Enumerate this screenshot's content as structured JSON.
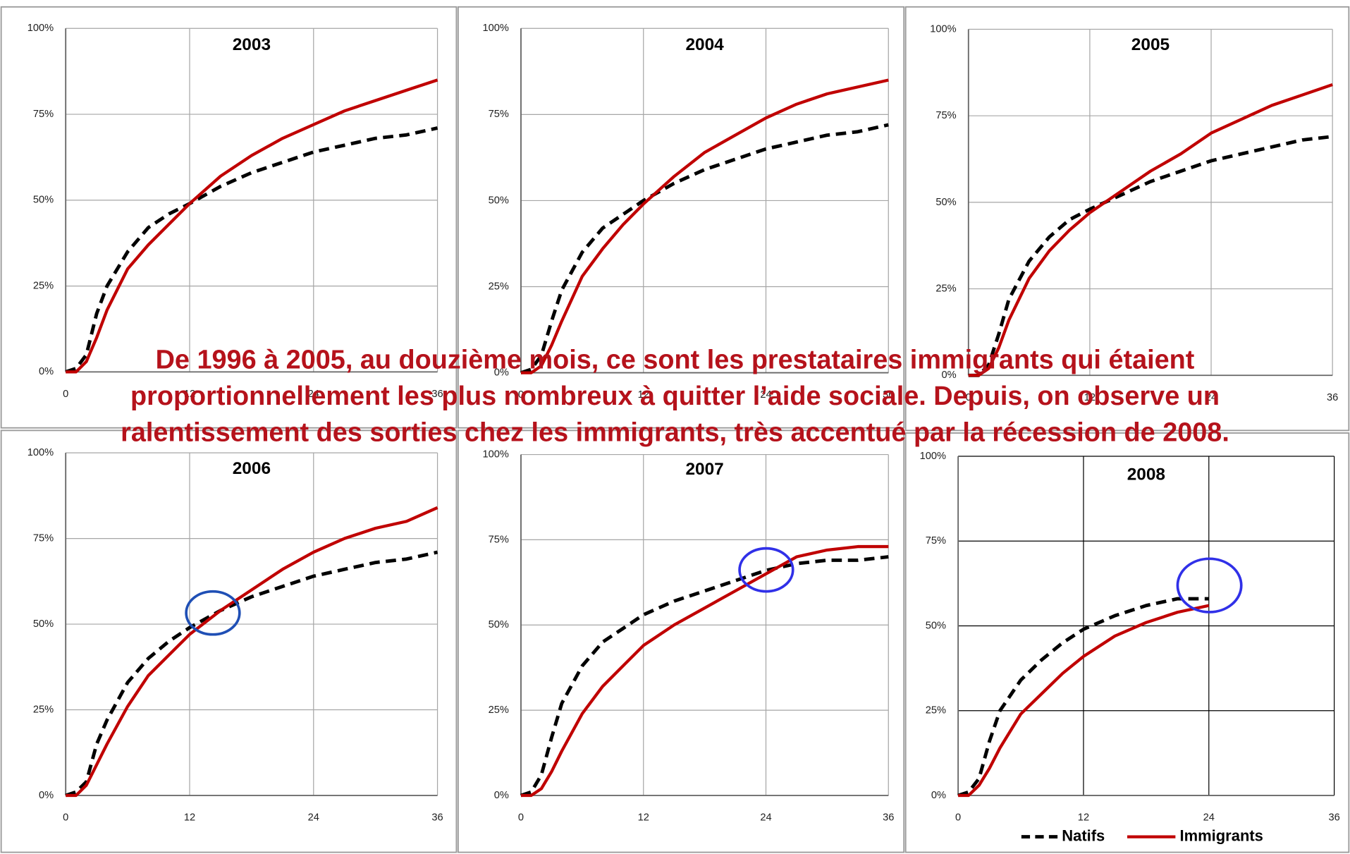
{
  "chart_data": [
    {
      "type": "line",
      "title": "2003",
      "x": [
        0,
        1,
        2,
        3,
        4,
        6,
        8,
        10,
        12,
        15,
        18,
        21,
        24,
        27,
        30,
        33,
        36
      ],
      "series": [
        {
          "color": "#000000",
          "dash": true,
          "values": [
            0,
            1,
            5,
            17,
            25,
            35,
            42,
            46,
            49,
            54,
            58,
            61,
            64,
            66,
            68,
            69,
            71
          ]
        },
        {
          "color": "#c00000",
          "values": [
            0,
            0,
            3,
            10,
            18,
            30,
            37,
            43,
            49,
            57,
            63,
            68,
            72,
            76,
            79,
            82,
            85
          ]
        }
      ],
      "xlim": [
        0,
        36
      ],
      "xticks": [
        0,
        12,
        24,
        36
      ],
      "ylim": [
        0,
        100
      ],
      "yticks": [
        {
          "value": 0,
          "label": "0%"
        },
        {
          "value": 25,
          "label": "25%"
        },
        {
          "value": 50,
          "label": "50%"
        },
        {
          "value": 75,
          "label": "75%"
        },
        {
          "value": 100,
          "label": "100%"
        }
      ],
      "grid": true,
      "grid_color": "#a6a6a6"
    },
    {
      "type": "line",
      "title": "2004",
      "x": [
        0,
        1,
        2,
        3,
        4,
        6,
        8,
        10,
        12,
        15,
        18,
        21,
        24,
        27,
        30,
        33,
        36
      ],
      "series": [
        {
          "color": "#000000",
          "dash": true,
          "values": [
            0,
            1,
            5,
            15,
            24,
            35,
            42,
            46,
            50,
            55,
            59,
            62,
            65,
            67,
            69,
            70,
            72
          ]
        },
        {
          "color": "#c00000",
          "values": [
            0,
            0,
            2,
            8,
            15,
            28,
            36,
            43,
            49,
            57,
            64,
            69,
            74,
            78,
            81,
            83,
            85
          ]
        }
      ],
      "xlim": [
        0,
        36
      ],
      "xticks": [
        0,
        12,
        24,
        36
      ],
      "ylim": [
        0,
        100
      ],
      "yticks": [
        {
          "value": 0,
          "label": "0%"
        },
        {
          "value": 25,
          "label": "25%"
        },
        {
          "value": 50,
          "label": "50%"
        },
        {
          "value": 75,
          "label": "75%"
        },
        {
          "value": 100,
          "label": "100%"
        }
      ],
      "grid": true,
      "grid_color": "#a6a6a6"
    },
    {
      "type": "line",
      "title": "2005",
      "x": [
        0,
        1,
        2,
        3,
        4,
        6,
        8,
        10,
        12,
        15,
        18,
        21,
        24,
        27,
        30,
        33,
        36
      ],
      "series": [
        {
          "color": "#000000",
          "dash": true,
          "values": [
            0,
            0,
            3,
            12,
            22,
            33,
            40,
            45,
            48,
            52,
            56,
            59,
            62,
            64,
            66,
            68,
            69
          ]
        },
        {
          "color": "#c00000",
          "values": [
            0,
            0,
            2,
            8,
            16,
            28,
            36,
            42,
            47,
            53,
            59,
            64,
            70,
            74,
            78,
            81,
            84
          ]
        }
      ],
      "xlim": [
        0,
        36
      ],
      "xticks": [
        0,
        12,
        24,
        36
      ],
      "ylim": [
        0,
        100
      ],
      "yticks": [
        {
          "value": 0,
          "label": "0%"
        },
        {
          "value": 25,
          "label": "25%"
        },
        {
          "value": 50,
          "label": "50%"
        },
        {
          "value": 75,
          "label": "75%"
        },
        {
          "value": 100,
          "label": "100%"
        }
      ],
      "grid": true,
      "grid_color": "#a6a6a6"
    },
    {
      "type": "line",
      "title": "2006",
      "x": [
        0,
        1,
        2,
        3,
        4,
        6,
        8,
        10,
        12,
        15,
        18,
        21,
        24,
        27,
        30,
        33,
        36
      ],
      "series": [
        {
          "color": "#000000",
          "dash": true,
          "values": [
            0,
            1,
            4,
            15,
            22,
            33,
            40,
            45,
            49,
            54,
            58,
            61,
            64,
            66,
            68,
            69,
            71
          ]
        },
        {
          "color": "#c00000",
          "values": [
            0,
            0,
            3,
            9,
            15,
            26,
            35,
            41,
            47,
            54,
            60,
            66,
            71,
            75,
            78,
            80,
            84
          ]
        }
      ],
      "xlim": [
        0,
        36
      ],
      "xticks": [
        0,
        12,
        24,
        36
      ],
      "ylim": [
        0,
        100
      ],
      "yticks": [
        {
          "value": 0,
          "label": "0%"
        },
        {
          "value": 25,
          "label": "25%"
        },
        {
          "value": 50,
          "label": "50%"
        },
        {
          "value": 75,
          "label": "75%"
        },
        {
          "value": 100,
          "label": "100%"
        }
      ],
      "grid": true,
      "grid_color": "#a6a6a6"
    },
    {
      "type": "line",
      "title": "2007",
      "x": [
        0,
        1,
        2,
        3,
        4,
        6,
        8,
        10,
        12,
        15,
        18,
        21,
        24,
        27,
        30,
        33,
        36
      ],
      "series": [
        {
          "color": "#000000",
          "dash": true,
          "values": [
            0,
            1,
            6,
            17,
            27,
            38,
            45,
            49,
            53,
            57,
            60,
            63,
            66,
            68,
            69,
            69,
            70
          ]
        },
        {
          "color": "#c00000",
          "values": [
            0,
            0,
            2,
            7,
            13,
            24,
            32,
            38,
            44,
            50,
            55,
            60,
            65,
            70,
            72,
            73,
            73
          ]
        }
      ],
      "xlim": [
        0,
        36
      ],
      "xticks": [
        0,
        12,
        24,
        36
      ],
      "ylim": [
        0,
        100
      ],
      "yticks": [
        {
          "value": 0,
          "label": "0%"
        },
        {
          "value": 25,
          "label": "25%"
        },
        {
          "value": 50,
          "label": "50%"
        },
        {
          "value": 75,
          "label": "75%"
        },
        {
          "value": 100,
          "label": "100%"
        }
      ],
      "grid": true,
      "grid_color": "#a6a6a6"
    },
    {
      "type": "line",
      "title": "2008",
      "x": [
        0,
        1,
        2,
        3,
        4,
        6,
        8,
        10,
        12,
        15,
        18,
        21,
        24,
        27,
        30,
        33,
        36
      ],
      "series": [
        {
          "name": "Natifs",
          "color": "#000000",
          "dash": true,
          "values": [
            0,
            1,
            5,
            16,
            25,
            34,
            40,
            45,
            49,
            53,
            56,
            58,
            58,
            null,
            null,
            null,
            null
          ]
        },
        {
          "name": "Immigrants",
          "color": "#c00000",
          "values": [
            0,
            0,
            3,
            8,
            14,
            24,
            30,
            36,
            41,
            47,
            51,
            54,
            56,
            null,
            null,
            null,
            null
          ]
        }
      ],
      "xlim": [
        0,
        36
      ],
      "xticks": [
        0,
        12,
        24,
        36
      ],
      "ylim": [
        0,
        100
      ],
      "yticks": [
        {
          "value": 0,
          "label": "0%"
        },
        {
          "value": 25,
          "label": "25%"
        },
        {
          "value": 50,
          "label": "50%"
        },
        {
          "value": 75,
          "label": "75%"
        },
        {
          "value": 100,
          "label": "100%"
        }
      ],
      "grid": true,
      "grid_color": "#000000",
      "legend": "bottom"
    }
  ],
  "annotation": [
    "De 1996 à 2005, au douzième mois, ce sont les prestataires immigrants qui étaient",
    "proportionnellement les plus nombreux à quitter l’aide sociale. Depuis, on observe un",
    "ralentissement des sorties chez les immigrants, très accentué par la récession de 2008."
  ]
}
